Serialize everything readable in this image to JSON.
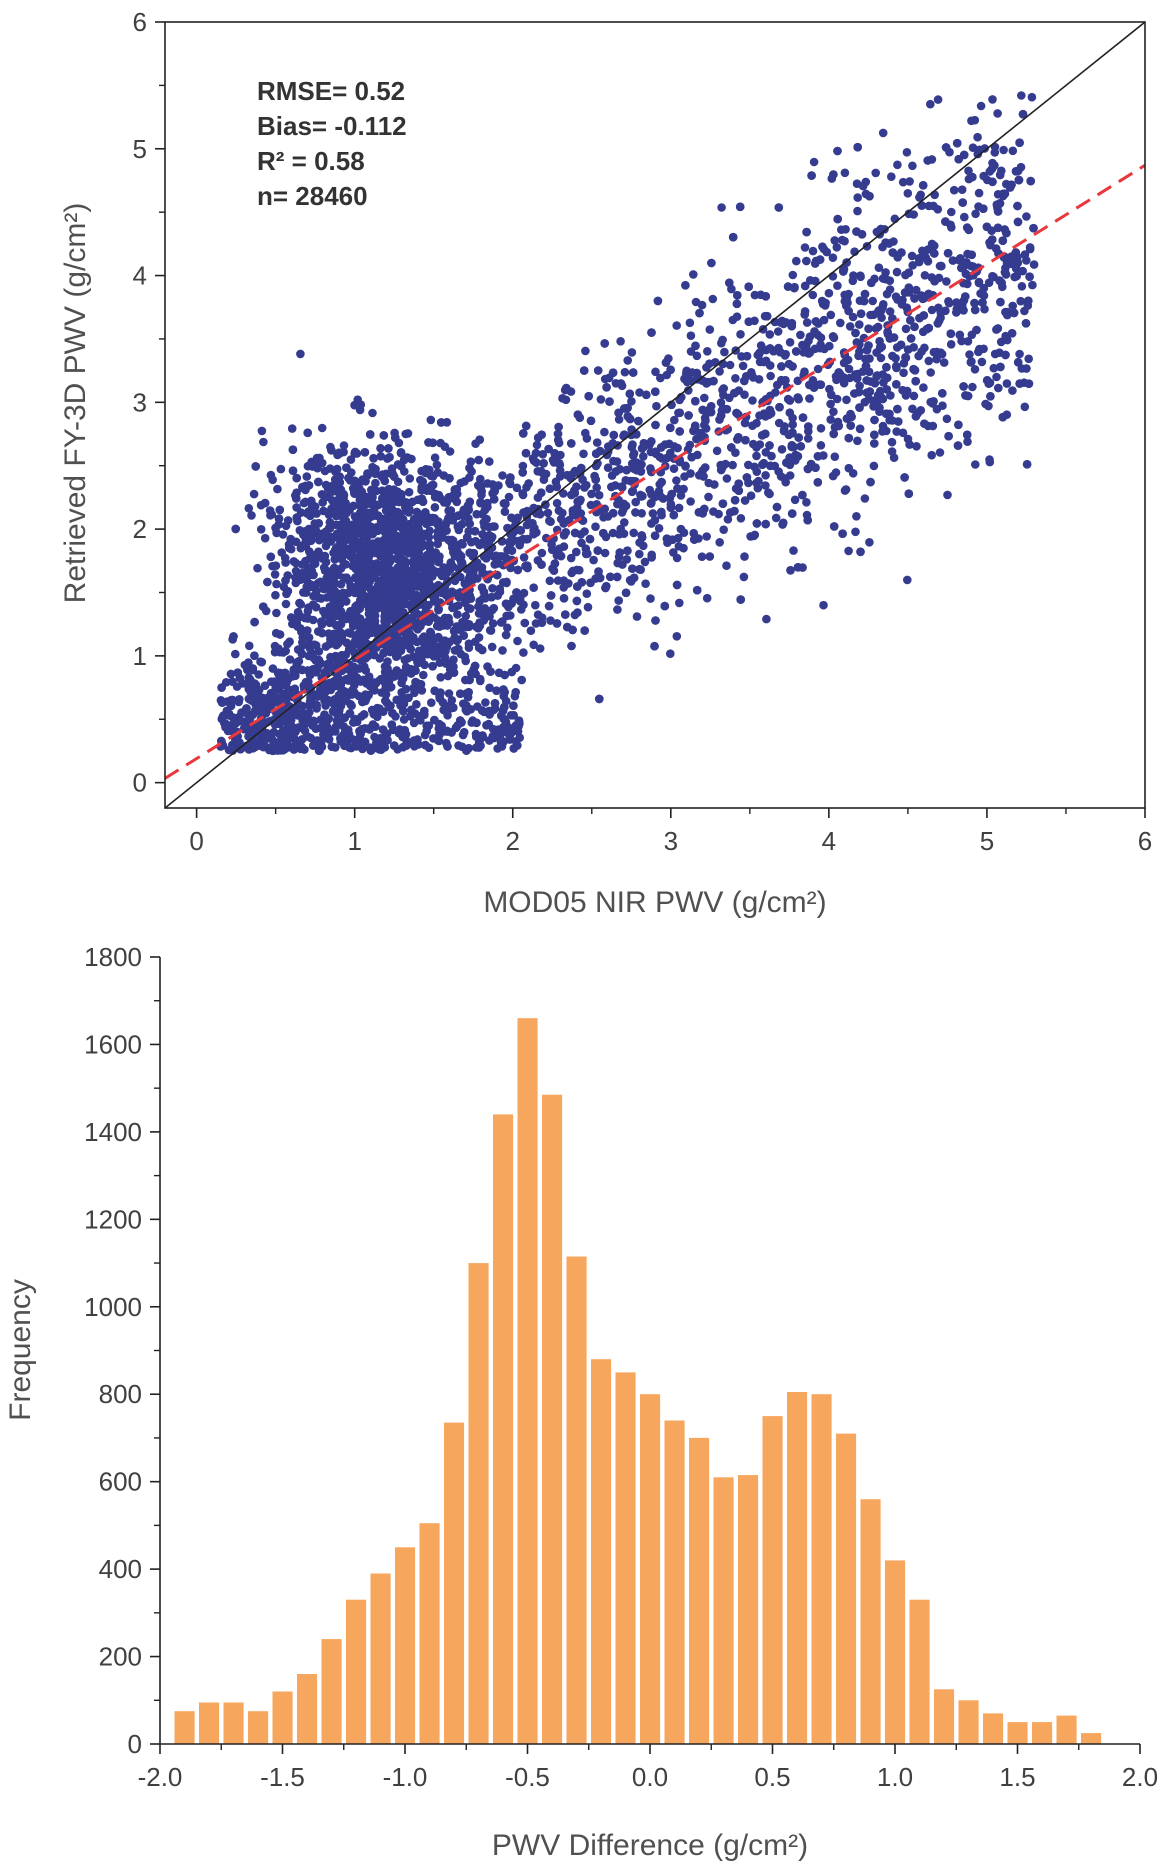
{
  "chart_data": [
    {
      "type": "scatter",
      "xlabel": "MOD05 NIR PWV (g/cm²)",
      "ylabel": "Retrieved FY-3D PWV (g/cm²)",
      "xlim": [
        -0.2,
        6
      ],
      "ylim": [
        -0.2,
        6
      ],
      "x_ticks": [
        "0",
        "1",
        "2",
        "3",
        "4",
        "5",
        "6"
      ],
      "y_ticks": [
        "0",
        "1",
        "2",
        "3",
        "4",
        "5",
        "6"
      ],
      "stats": [
        "RMSE= 0.52",
        "Bias= -0.112",
        "R² = 0.58",
        "n= 28460"
      ],
      "n_points": 28460,
      "point_color": "#353b8f",
      "one_to_one_line": {
        "from": [
          -0.2,
          -0.2
        ],
        "to": [
          6,
          6
        ],
        "color": "#222222"
      },
      "fit_line": {
        "slope": 0.78,
        "intercept": 0.19,
        "color": "#e8383d",
        "style": "dashed"
      }
    },
    {
      "type": "bar",
      "xlabel": "PWV Difference (g/cm²)",
      "ylabel": "Frequency",
      "xlim": [
        -2.0,
        2.0
      ],
      "ylim": [
        0,
        1800
      ],
      "x_ticks": [
        "-2.0",
        "-1.5",
        "-1.0",
        "-0.5",
        "0.0",
        "0.5",
        "1.0",
        "1.5",
        "2.0"
      ],
      "y_ticks": [
        "0",
        "200",
        "400",
        "600",
        "800",
        "1000",
        "1200",
        "1400",
        "1600",
        "1800"
      ],
      "bin_width": 0.1,
      "bin_centers": [
        -1.9,
        -1.8,
        -1.7,
        -1.6,
        -1.5,
        -1.4,
        -1.3,
        -1.2,
        -1.1,
        -1.0,
        -0.9,
        -0.8,
        -0.7,
        -0.6,
        -0.5,
        -0.4,
        -0.3,
        -0.2,
        -0.1,
        0.0,
        0.1,
        0.2,
        0.3,
        0.4,
        0.5,
        0.6,
        0.7,
        0.8,
        0.9,
        1.0,
        1.1,
        1.2,
        1.3,
        1.4,
        1.5,
        1.6,
        1.7,
        1.8
      ],
      "values": [
        75,
        95,
        95,
        75,
        120,
        160,
        240,
        330,
        390,
        450,
        505,
        735,
        1100,
        1440,
        1660,
        1485,
        1115,
        880,
        850,
        800,
        740,
        700,
        610,
        615,
        750,
        805,
        800,
        710,
        560,
        420,
        330,
        125,
        100,
        70,
        50,
        50,
        65,
        25
      ],
      "bar_color": "#f7a65d"
    }
  ]
}
